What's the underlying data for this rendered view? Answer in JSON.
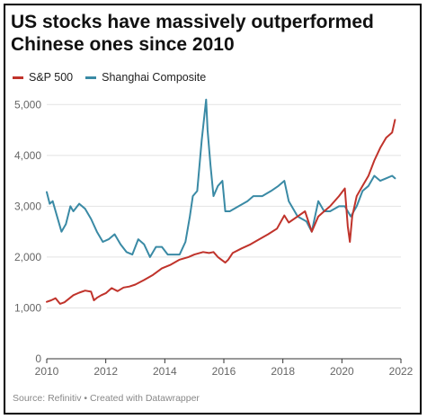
{
  "title": "US stocks have massively outperformed Chinese ones since 2010",
  "source": "Source: Refinitiv • Created with Datawrapper",
  "colors": {
    "sp500": "#c0332b",
    "shanghai": "#3a8aa5",
    "grid": "#e2e2e2",
    "axis": "#333333"
  },
  "chart_data": {
    "type": "line",
    "title": "US stocks have massively outperformed Chinese ones since 2010",
    "xlabel": "",
    "ylabel": "",
    "xlim": [
      2010,
      2022
    ],
    "ylim": [
      0,
      5200
    ],
    "x_ticks": [
      2010,
      2012,
      2014,
      2016,
      2018,
      2020,
      2022
    ],
    "y_ticks": [
      0,
      1000,
      2000,
      3000,
      4000,
      5000
    ],
    "y_tick_labels": [
      "0",
      "1,000",
      "2,000",
      "3,000",
      "4,000",
      "5,000"
    ],
    "legend_position": "top-left",
    "grid": true,
    "series": [
      {
        "name": "S&P 500",
        "color": "#c0332b",
        "x": [
          2010.0,
          2010.15,
          2010.3,
          2010.45,
          2010.6,
          2010.75,
          2010.9,
          2011.1,
          2011.3,
          2011.5,
          2011.6,
          2011.7,
          2011.85,
          2012.0,
          2012.2,
          2012.4,
          2012.6,
          2012.8,
          2013.0,
          2013.3,
          2013.6,
          2013.9,
          2014.2,
          2014.5,
          2014.8,
          2015.0,
          2015.3,
          2015.5,
          2015.65,
          2015.8,
          2016.05,
          2016.15,
          2016.3,
          2016.6,
          2016.9,
          2017.2,
          2017.5,
          2017.8,
          2018.05,
          2018.2,
          2018.5,
          2018.75,
          2018.98,
          2019.2,
          2019.4,
          2019.6,
          2019.9,
          2020.1,
          2020.2,
          2020.27,
          2020.35,
          2020.5,
          2020.7,
          2020.9,
          2021.1,
          2021.3,
          2021.5,
          2021.7,
          2021.8
        ],
        "values": [
          1120,
          1150,
          1190,
          1080,
          1110,
          1180,
          1250,
          1300,
          1340,
          1320,
          1150,
          1200,
          1250,
          1290,
          1390,
          1330,
          1400,
          1420,
          1460,
          1550,
          1650,
          1780,
          1850,
          1950,
          2000,
          2050,
          2100,
          2080,
          2100,
          2000,
          1890,
          1950,
          2080,
          2170,
          2250,
          2350,
          2450,
          2560,
          2820,
          2680,
          2800,
          2900,
          2500,
          2800,
          2900,
          3000,
          3200,
          3350,
          2600,
          2300,
          2800,
          3200,
          3400,
          3600,
          3900,
          4150,
          4350,
          4450,
          4700
        ]
      },
      {
        "name": "Shanghai Composite",
        "color": "#3a8aa5",
        "x": [
          2010.0,
          2010.1,
          2010.2,
          2010.35,
          2010.5,
          2010.65,
          2010.8,
          2010.9,
          2011.1,
          2011.3,
          2011.5,
          2011.7,
          2011.9,
          2012.1,
          2012.3,
          2012.5,
          2012.7,
          2012.9,
          2013.1,
          2013.3,
          2013.5,
          2013.7,
          2013.9,
          2014.1,
          2014.3,
          2014.5,
          2014.7,
          2014.85,
          2014.95,
          2015.1,
          2015.25,
          2015.4,
          2015.45,
          2015.55,
          2015.65,
          2015.8,
          2015.95,
          2016.05,
          2016.2,
          2016.5,
          2016.8,
          2017.0,
          2017.3,
          2017.6,
          2017.85,
          2018.05,
          2018.2,
          2018.5,
          2018.8,
          2018.98,
          2019.2,
          2019.4,
          2019.6,
          2019.9,
          2020.1,
          2020.3,
          2020.5,
          2020.7,
          2020.9,
          2021.1,
          2021.3,
          2021.5,
          2021.7,
          2021.8
        ],
        "values": [
          3280,
          3050,
          3100,
          2800,
          2500,
          2650,
          3000,
          2900,
          3050,
          2950,
          2750,
          2500,
          2300,
          2350,
          2450,
          2250,
          2100,
          2050,
          2350,
          2250,
          2000,
          2200,
          2200,
          2050,
          2050,
          2050,
          2300,
          2800,
          3200,
          3300,
          4300,
          5100,
          4500,
          3800,
          3200,
          3400,
          3500,
          2900,
          2900,
          3000,
          3100,
          3200,
          3200,
          3300,
          3400,
          3500,
          3100,
          2800,
          2700,
          2500,
          3100,
          2900,
          2900,
          3000,
          3000,
          2800,
          3000,
          3300,
          3400,
          3600,
          3500,
          3550,
          3600,
          3550
        ]
      }
    ]
  }
}
